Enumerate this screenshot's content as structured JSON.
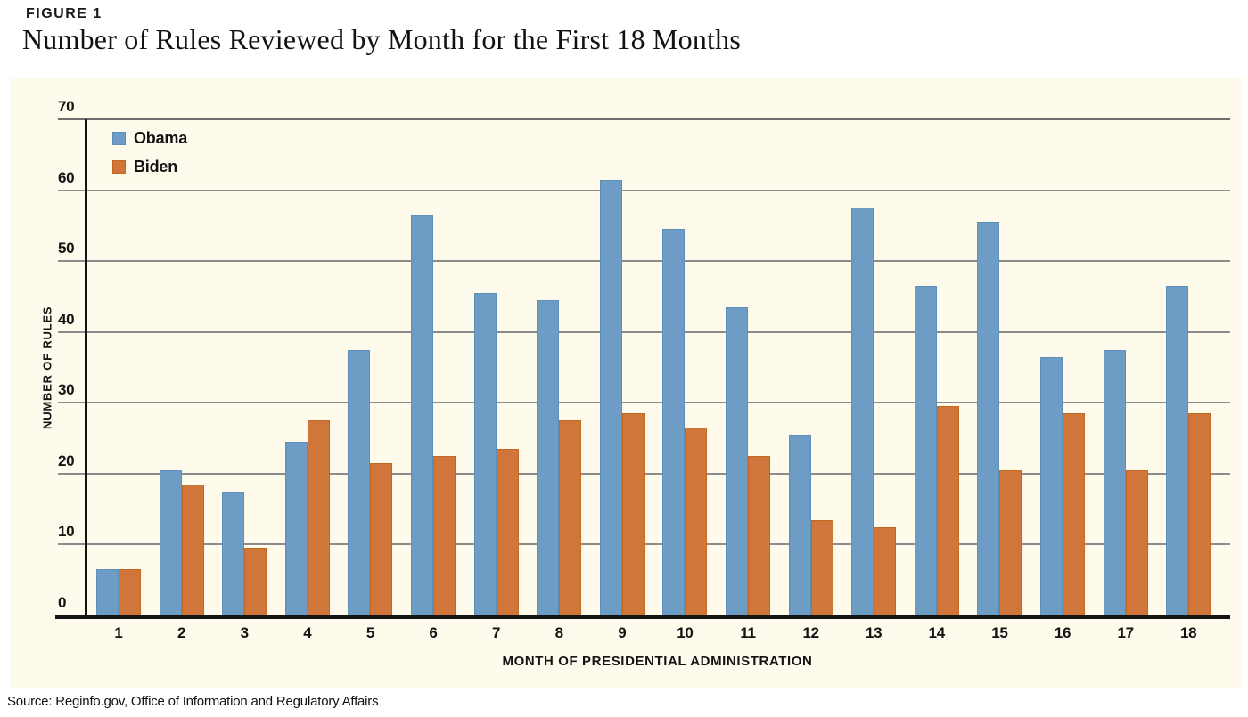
{
  "figure_label": "FIGURE 1",
  "title": "Number of Rules Reviewed by Month for the First 18 Months",
  "source": "Source: Reginfo.gov, Office of Information and Regulatory Affairs",
  "colors": {
    "panel_background": "#FEFBEC",
    "gridline": "#8C8C8C",
    "top_gridline": "#6E6E6E",
    "axis": "#131313",
    "text": "#131313"
  },
  "chart_data": {
    "type": "bar",
    "title": "Number of Rules Reviewed by Month for the First 18 Months",
    "categories": [
      "1",
      "2",
      "3",
      "4",
      "5",
      "6",
      "7",
      "8",
      "9",
      "10",
      "11",
      "12",
      "13",
      "14",
      "15",
      "16",
      "17",
      "18"
    ],
    "series": [
      {
        "name": "Obama",
        "color": "#6D9CC4",
        "border_color": "#5E8FB8",
        "values": [
          6.5,
          20.5,
          17.5,
          24.5,
          37.5,
          56.5,
          45.5,
          44.5,
          61.5,
          54.5,
          43.5,
          25.5,
          57.5,
          46.5,
          55.5,
          36.5,
          37.5,
          46.5
        ]
      },
      {
        "name": "Biden",
        "color": "#D0763A",
        "border_color": "#C4671F",
        "values": [
          6.5,
          18.5,
          9.5,
          27.5,
          21.5,
          22.5,
          23.5,
          27.5,
          28.5,
          26.5,
          22.5,
          13.5,
          12.5,
          29.5,
          20.5,
          28.5,
          20.5,
          28.5
        ]
      }
    ],
    "xlabel": "MONTH OF PRESIDENTIAL ADMINISTRATION",
    "ylabel": "NUMBER OF RULES",
    "ylim": [
      0,
      70
    ],
    "yticks": [
      0,
      10,
      20,
      30,
      40,
      50,
      60,
      70
    ],
    "grid": true,
    "legend_position": "top-left"
  }
}
